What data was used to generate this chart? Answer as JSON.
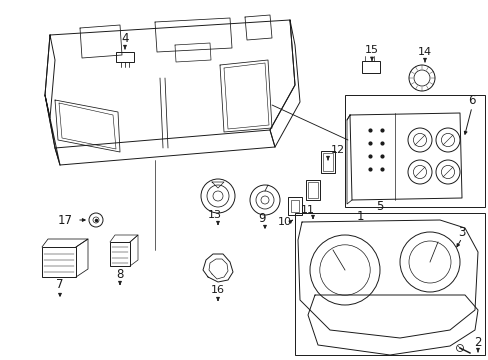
{
  "bg_color": "#ffffff",
  "line_color": "#1a1a1a",
  "lw": 0.7,
  "fig_w": 4.89,
  "fig_h": 3.6,
  "dpi": 100
}
